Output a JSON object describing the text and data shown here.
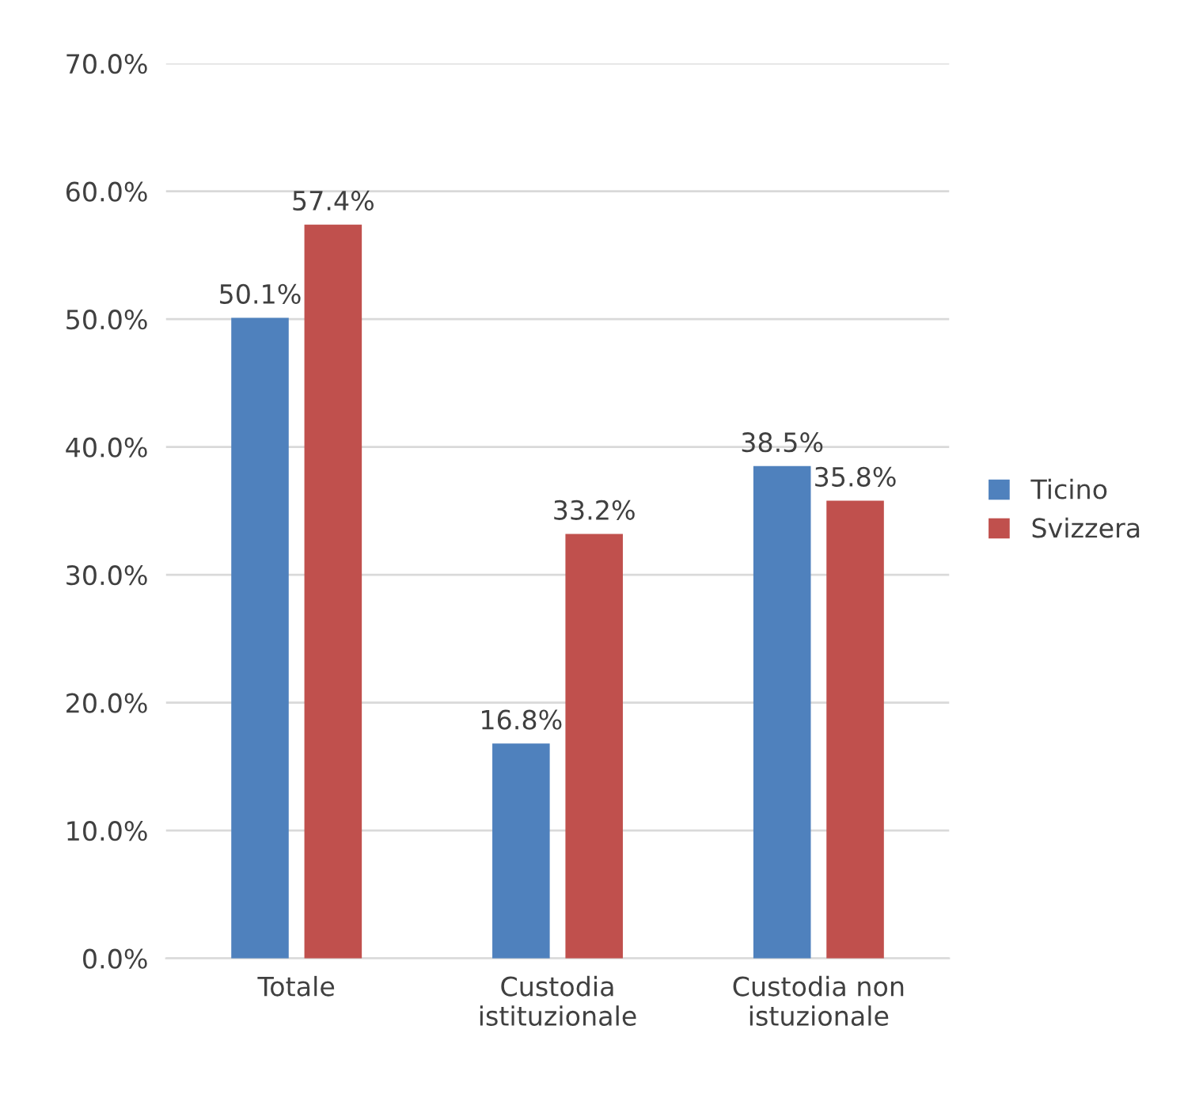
{
  "chart_data": {
    "type": "bar",
    "categories": [
      "Totale",
      "Custodia\nistituzionale",
      "Custodia non\nistuzionale"
    ],
    "series": [
      {
        "name": "Ticino",
        "color": "#4f81bd",
        "values": [
          50.1,
          16.8,
          38.5
        ],
        "value_labels": [
          "50.1%",
          "16.8%",
          "38.5%"
        ]
      },
      {
        "name": "Svizzera",
        "color": "#c0504d",
        "values": [
          57.4,
          33.2,
          35.8
        ],
        "value_labels": [
          "57.4%",
          "33.2%",
          "35.8%"
        ]
      }
    ],
    "ylim": [
      0,
      70
    ],
    "yticks": [
      {
        "value": 0,
        "label": "0.0%"
      },
      {
        "value": 10,
        "label": "10.0%"
      },
      {
        "value": 20,
        "label": "20.0%"
      },
      {
        "value": 30,
        "label": "30.0%"
      },
      {
        "value": 40,
        "label": "40.0%"
      },
      {
        "value": 50,
        "label": "50.0%"
      },
      {
        "value": 60,
        "label": "60.0%"
      },
      {
        "value": 70,
        "label": "70.0%"
      }
    ],
    "grid": "y",
    "legend": "right"
  }
}
